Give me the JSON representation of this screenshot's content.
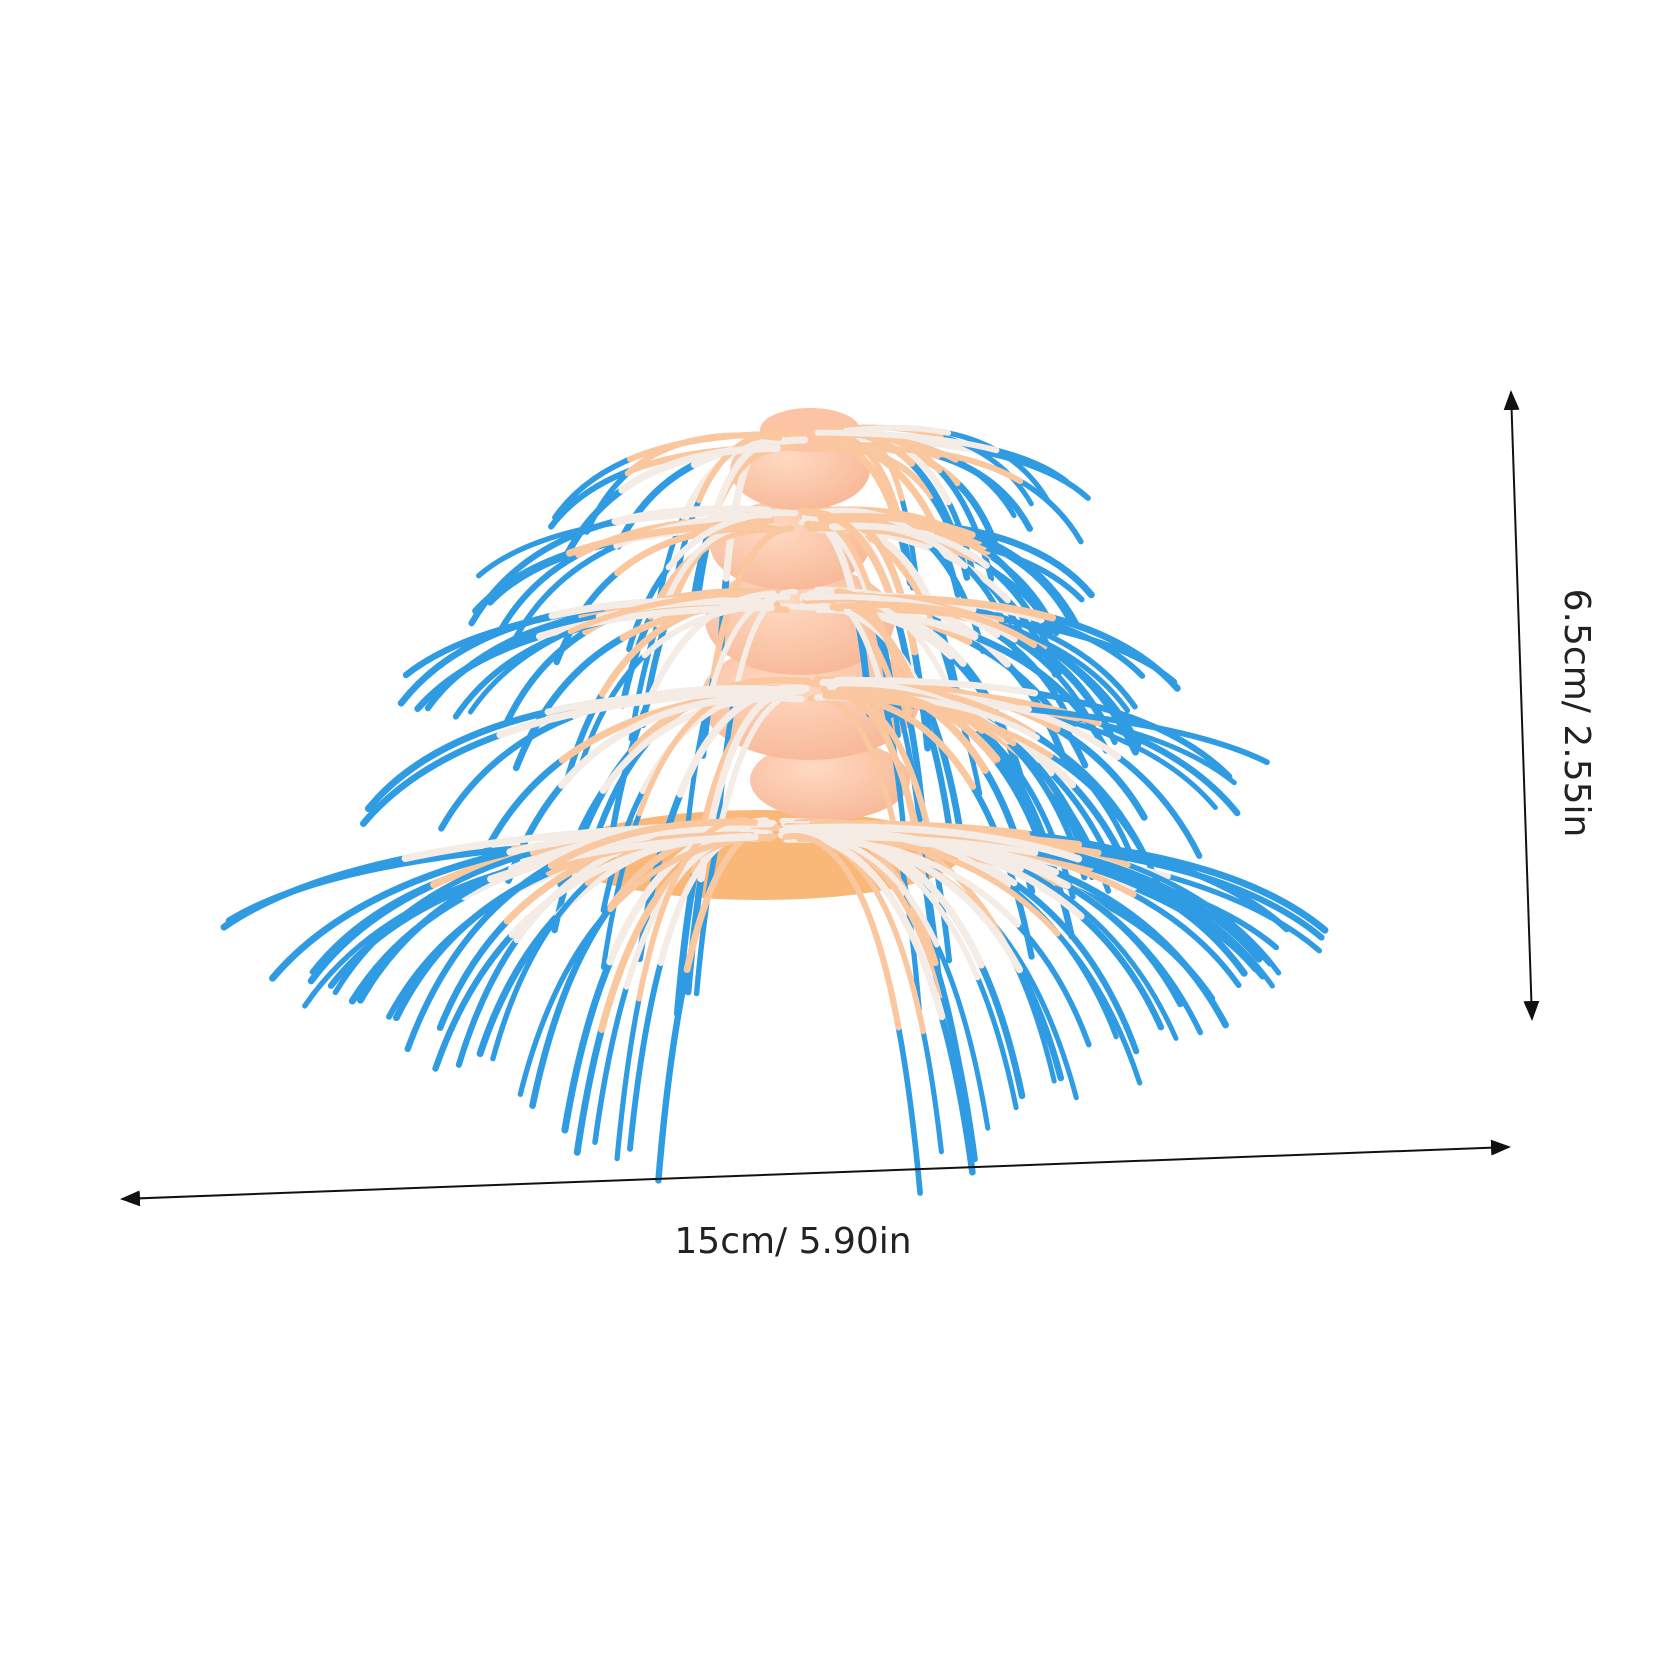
{
  "dimensions": {
    "width_label": "15cm/ 5.90in",
    "height_label": "6.5cm/ 2.55in"
  }
}
